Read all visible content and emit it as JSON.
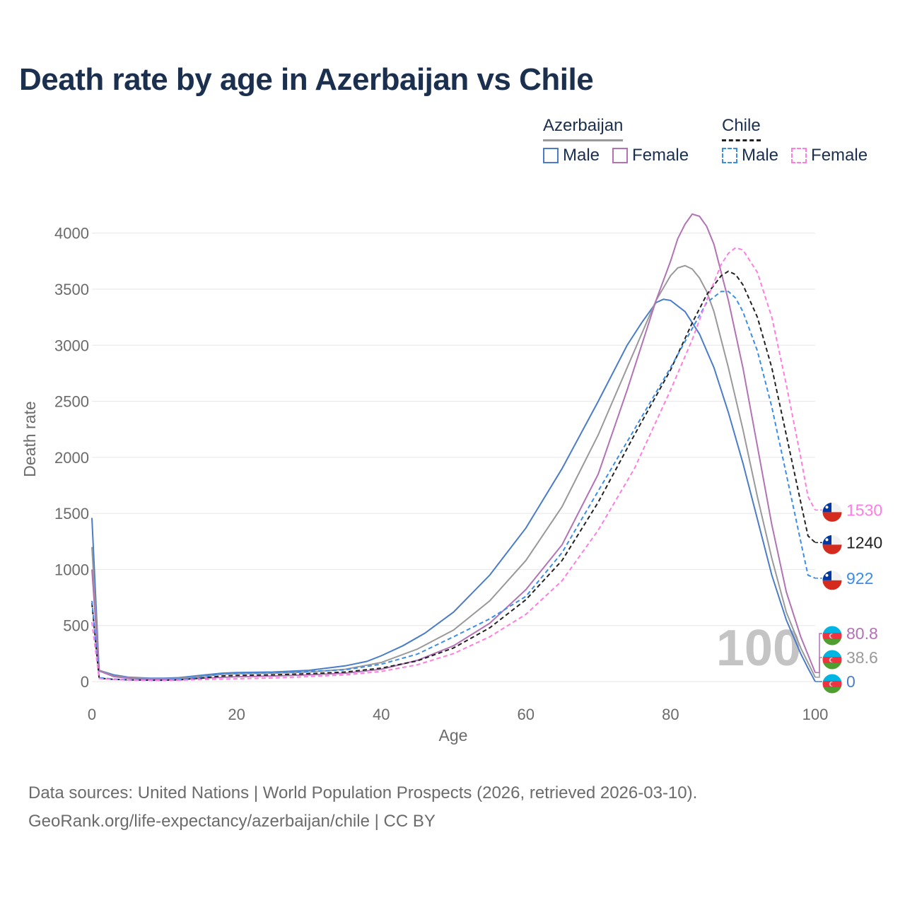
{
  "title": "Death rate by age in Azerbaijan vs Chile",
  "legend": {
    "groups": [
      {
        "name": "Azerbaijan",
        "underline_color": "#999999",
        "underline_style": "solid",
        "items": [
          {
            "label": "Male",
            "color": "#4a7cc9",
            "style": "solid"
          },
          {
            "label": "Female",
            "color": "#b272b5",
            "style": "solid"
          }
        ]
      },
      {
        "name": "Chile",
        "underline_color": "#222222",
        "underline_style": "dashed",
        "items": [
          {
            "label": "Male",
            "color": "#3b8de8",
            "style": "dashed"
          },
          {
            "label": "Female",
            "color": "#ff7de0",
            "style": "dashed"
          }
        ]
      }
    ]
  },
  "footer": {
    "line1": "Data sources: United Nations | World Population Prospects (2026, retrieved 2026-03-10).",
    "line2": "GeoRank.org/life-expectancy/azerbaijan/chile | CC BY"
  },
  "chart_data": {
    "type": "line",
    "xlabel": "Age",
    "ylabel": "Death rate",
    "xlim": [
      0,
      100
    ],
    "ylim": [
      0,
      4200
    ],
    "xticks": [
      0,
      20,
      40,
      60,
      80,
      100
    ],
    "yticks": [
      0,
      500,
      1000,
      1500,
      2000,
      2500,
      3000,
      3500,
      4000
    ],
    "grid": true,
    "watermark": "100",
    "series": [
      {
        "name": "Azerbaijan Male",
        "country": "Azerbaijan",
        "color": "#4a7cc9",
        "dashed": false,
        "end_label": "0",
        "points": [
          [
            0,
            1460
          ],
          [
            1,
            100
          ],
          [
            3,
            60
          ],
          [
            5,
            40
          ],
          [
            8,
            30
          ],
          [
            10,
            30
          ],
          [
            12,
            35
          ],
          [
            15,
            55
          ],
          [
            18,
            75
          ],
          [
            20,
            80
          ],
          [
            25,
            85
          ],
          [
            30,
            100
          ],
          [
            35,
            140
          ],
          [
            38,
            180
          ],
          [
            40,
            230
          ],
          [
            43,
            320
          ],
          [
            46,
            430
          ],
          [
            50,
            620
          ],
          [
            55,
            950
          ],
          [
            60,
            1370
          ],
          [
            65,
            1900
          ],
          [
            70,
            2500
          ],
          [
            74,
            3000
          ],
          [
            76,
            3200
          ],
          [
            78,
            3380
          ],
          [
            79,
            3410
          ],
          [
            80,
            3400
          ],
          [
            82,
            3300
          ],
          [
            84,
            3100
          ],
          [
            86,
            2800
          ],
          [
            88,
            2400
          ],
          [
            90,
            1950
          ],
          [
            92,
            1450
          ],
          [
            94,
            950
          ],
          [
            96,
            550
          ],
          [
            98,
            250
          ],
          [
            99,
            120
          ],
          [
            100,
            0
          ]
        ]
      },
      {
        "name": "Azerbaijan Total",
        "country": "Azerbaijan",
        "color": "#999999",
        "dashed": false,
        "end_label": "38.6",
        "points": [
          [
            0,
            1200
          ],
          [
            1,
            100
          ],
          [
            3,
            50
          ],
          [
            5,
            35
          ],
          [
            8,
            25
          ],
          [
            10,
            25
          ],
          [
            12,
            28
          ],
          [
            15,
            45
          ],
          [
            18,
            65
          ],
          [
            20,
            70
          ],
          [
            25,
            75
          ],
          [
            30,
            85
          ],
          [
            35,
            110
          ],
          [
            40,
            170
          ],
          [
            45,
            290
          ],
          [
            50,
            460
          ],
          [
            55,
            720
          ],
          [
            60,
            1080
          ],
          [
            65,
            1560
          ],
          [
            70,
            2200
          ],
          [
            74,
            2800
          ],
          [
            76,
            3100
          ],
          [
            78,
            3400
          ],
          [
            80,
            3620
          ],
          [
            81,
            3690
          ],
          [
            82,
            3710
          ],
          [
            83,
            3680
          ],
          [
            84,
            3600
          ],
          [
            85,
            3480
          ],
          [
            86,
            3300
          ],
          [
            88,
            2800
          ],
          [
            90,
            2250
          ],
          [
            92,
            1650
          ],
          [
            94,
            1100
          ],
          [
            96,
            620
          ],
          [
            98,
            300
          ],
          [
            100,
            38.6
          ]
        ]
      },
      {
        "name": "Azerbaijan Female",
        "country": "Azerbaijan",
        "color": "#b272b5",
        "dashed": false,
        "end_label": "80.8",
        "points": [
          [
            0,
            1000
          ],
          [
            1,
            95
          ],
          [
            3,
            45
          ],
          [
            5,
            30
          ],
          [
            8,
            20
          ],
          [
            10,
            20
          ],
          [
            12,
            22
          ],
          [
            15,
            30
          ],
          [
            20,
            42
          ],
          [
            25,
            50
          ],
          [
            30,
            60
          ],
          [
            35,
            75
          ],
          [
            40,
            110
          ],
          [
            45,
            190
          ],
          [
            50,
            320
          ],
          [
            55,
            520
          ],
          [
            60,
            820
          ],
          [
            65,
            1220
          ],
          [
            70,
            1850
          ],
          [
            74,
            2600
          ],
          [
            76,
            3000
          ],
          [
            78,
            3400
          ],
          [
            80,
            3750
          ],
          [
            81,
            3950
          ],
          [
            82,
            4080
          ],
          [
            83,
            4170
          ],
          [
            84,
            4150
          ],
          [
            85,
            4060
          ],
          [
            86,
            3900
          ],
          [
            88,
            3400
          ],
          [
            90,
            2800
          ],
          [
            92,
            2100
          ],
          [
            94,
            1400
          ],
          [
            96,
            800
          ],
          [
            98,
            400
          ],
          [
            100,
            80.8
          ]
        ]
      },
      {
        "name": "Chile Total",
        "country": "Chile",
        "color": "#222222",
        "dashed": true,
        "end_label": "1240",
        "points": [
          [
            0,
            700
          ],
          [
            1,
            30
          ],
          [
            3,
            20
          ],
          [
            5,
            15
          ],
          [
            8,
            12
          ],
          [
            10,
            12
          ],
          [
            12,
            15
          ],
          [
            15,
            30
          ],
          [
            18,
            50
          ],
          [
            20,
            55
          ],
          [
            25,
            60
          ],
          [
            30,
            70
          ],
          [
            35,
            85
          ],
          [
            40,
            120
          ],
          [
            45,
            185
          ],
          [
            50,
            300
          ],
          [
            55,
            480
          ],
          [
            60,
            730
          ],
          [
            65,
            1080
          ],
          [
            70,
            1600
          ],
          [
            75,
            2200
          ],
          [
            80,
            2780
          ],
          [
            83,
            3200
          ],
          [
            85,
            3450
          ],
          [
            87,
            3620
          ],
          [
            88,
            3660
          ],
          [
            89,
            3630
          ],
          [
            90,
            3540
          ],
          [
            92,
            3250
          ],
          [
            94,
            2800
          ],
          [
            96,
            2200
          ],
          [
            98,
            1600
          ],
          [
            99,
            1300
          ],
          [
            100,
            1240
          ]
        ]
      },
      {
        "name": "Chile Male",
        "country": "Chile",
        "color": "#3b8de8",
        "dashed": true,
        "end_label": "922",
        "points": [
          [
            0,
            720
          ],
          [
            1,
            35
          ],
          [
            3,
            22
          ],
          [
            5,
            16
          ],
          [
            8,
            13
          ],
          [
            10,
            14
          ],
          [
            12,
            18
          ],
          [
            15,
            40
          ],
          [
            18,
            70
          ],
          [
            20,
            75
          ],
          [
            25,
            80
          ],
          [
            30,
            90
          ],
          [
            35,
            105
          ],
          [
            40,
            155
          ],
          [
            45,
            245
          ],
          [
            50,
            400
          ],
          [
            55,
            560
          ],
          [
            60,
            760
          ],
          [
            65,
            1150
          ],
          [
            70,
            1700
          ],
          [
            75,
            2250
          ],
          [
            80,
            2800
          ],
          [
            83,
            3150
          ],
          [
            85,
            3380
          ],
          [
            87,
            3480
          ],
          [
            88,
            3480
          ],
          [
            89,
            3420
          ],
          [
            90,
            3300
          ],
          [
            92,
            2950
          ],
          [
            94,
            2450
          ],
          [
            96,
            1850
          ],
          [
            98,
            1250
          ],
          [
            99,
            950
          ],
          [
            100,
            922
          ]
        ]
      },
      {
        "name": "Chile Female",
        "country": "Chile",
        "color": "#ff7de0",
        "dashed": true,
        "end_label": "1530",
        "points": [
          [
            0,
            530
          ],
          [
            1,
            28
          ],
          [
            3,
            18
          ],
          [
            5,
            14
          ],
          [
            8,
            11
          ],
          [
            10,
            11
          ],
          [
            12,
            12
          ],
          [
            15,
            18
          ],
          [
            20,
            25
          ],
          [
            25,
            32
          ],
          [
            30,
            45
          ],
          [
            35,
            60
          ],
          [
            40,
            90
          ],
          [
            45,
            150
          ],
          [
            50,
            250
          ],
          [
            55,
            400
          ],
          [
            60,
            600
          ],
          [
            65,
            900
          ],
          [
            70,
            1350
          ],
          [
            75,
            1900
          ],
          [
            80,
            2600
          ],
          [
            83,
            3050
          ],
          [
            85,
            3400
          ],
          [
            87,
            3720
          ],
          [
            88,
            3820
          ],
          [
            89,
            3870
          ],
          [
            90,
            3850
          ],
          [
            92,
            3650
          ],
          [
            94,
            3250
          ],
          [
            96,
            2650
          ],
          [
            98,
            2000
          ],
          [
            99,
            1650
          ],
          [
            100,
            1530
          ]
        ]
      }
    ]
  }
}
